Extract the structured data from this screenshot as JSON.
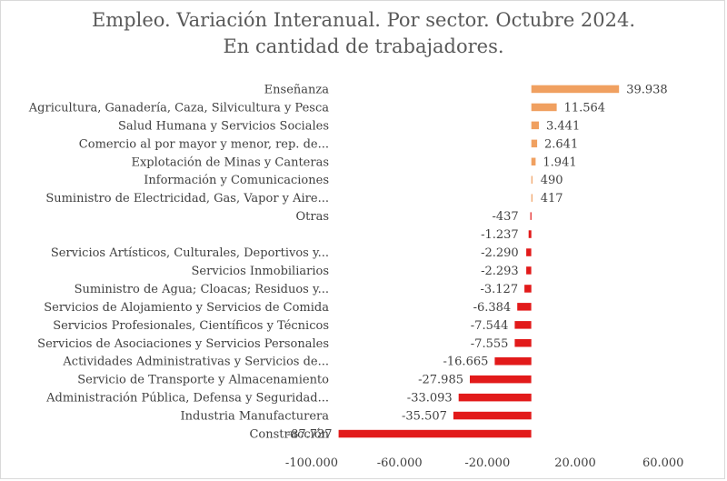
{
  "chart_data": {
    "type": "bar",
    "orientation": "horizontal",
    "title_lines": [
      "Empleo. Variación Interanual. Por sector. Octubre 2024.",
      "En cantidad de trabajadores."
    ],
    "categories": [
      "Enseñanza",
      "Agricultura, Ganadería, Caza, Silvicultura y Pesca",
      "Salud Humana y Servicios Sociales",
      "Comercio al por mayor y menor, rep. de...",
      "Explotación de Minas y Canteras",
      "Información y Comunicaciones",
      "Suministro de Electricidad, Gas, Vapor y Aire...",
      "Otras",
      "",
      "Servicios  Artísticos, Culturales, Deportivos y...",
      "Servicios Inmobiliarios",
      "Suministro de Agua; Cloacas; Residuos y...",
      "Servicios de Alojamiento y Servicios de Comida",
      "Servicios Profesionales, Científicos y Técnicos",
      "Servicios de Asociaciones y Servicios Personales",
      "Actividades Administrativas y Servicios de...",
      "Servicio de Transporte y Almacenamiento",
      "Administración Pública, Defensa y Seguridad...",
      "Industria Manufacturera",
      "Construcción"
    ],
    "values": [
      39938,
      11564,
      3441,
      2641,
      1941,
      490,
      417,
      -437,
      -1237,
      -2290,
      -2293,
      -3127,
      -6384,
      -7544,
      -7555,
      -16665,
      -27985,
      -33093,
      -35507,
      -87737
    ],
    "value_labels": [
      "39.938",
      "11.564",
      "3.441",
      "2.641",
      "1.941",
      "490",
      "417",
      "-437",
      "-1.237",
      "-2.290",
      "-2.293",
      "-3.127",
      "-6.384",
      "-7.544",
      "-7.555",
      "-16.665",
      "-27.985",
      "-33.093",
      "-35.507",
      "-87.737"
    ],
    "xlim": [
      -100000,
      80000
    ],
    "xticks": [
      -100000,
      -60000,
      -20000,
      20000,
      60000
    ],
    "xtick_labels": [
      "-100.000",
      "-60.000",
      "-20.000",
      "20.000",
      "60.000"
    ],
    "grid": false,
    "legend": "none",
    "colors": {
      "positive": "#f0a060",
      "negative": "#e21a1a",
      "title": "#595959",
      "text": "#404040"
    }
  }
}
